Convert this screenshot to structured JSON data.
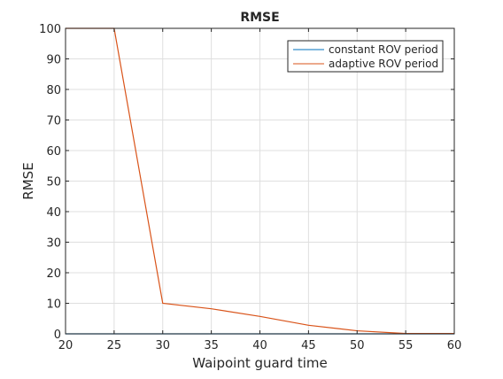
{
  "chart_data": {
    "type": "line",
    "title": "RMSE",
    "xlabel": "Waipoint guard time",
    "ylabel": "RMSE",
    "xlim": [
      20,
      60
    ],
    "ylim": [
      0,
      100
    ],
    "xticks": [
      20,
      25,
      30,
      35,
      40,
      45,
      50,
      55,
      60
    ],
    "yticks": [
      0,
      10,
      20,
      30,
      40,
      50,
      60,
      70,
      80,
      90,
      100
    ],
    "grid": true,
    "legend_position": "top-right",
    "x": [
      20,
      25,
      30,
      35,
      40,
      45,
      50,
      55,
      60
    ],
    "series": [
      {
        "name": "constant ROV period",
        "color": "#0072BD",
        "values": [
          0,
          0,
          0,
          0,
          0,
          0,
          0,
          0,
          0
        ]
      },
      {
        "name": "adaptive ROV period",
        "color": "#D95319",
        "values": [
          100,
          100,
          10,
          8.2,
          5.7,
          2.8,
          1.0,
          0.1,
          0.1
        ]
      }
    ]
  }
}
